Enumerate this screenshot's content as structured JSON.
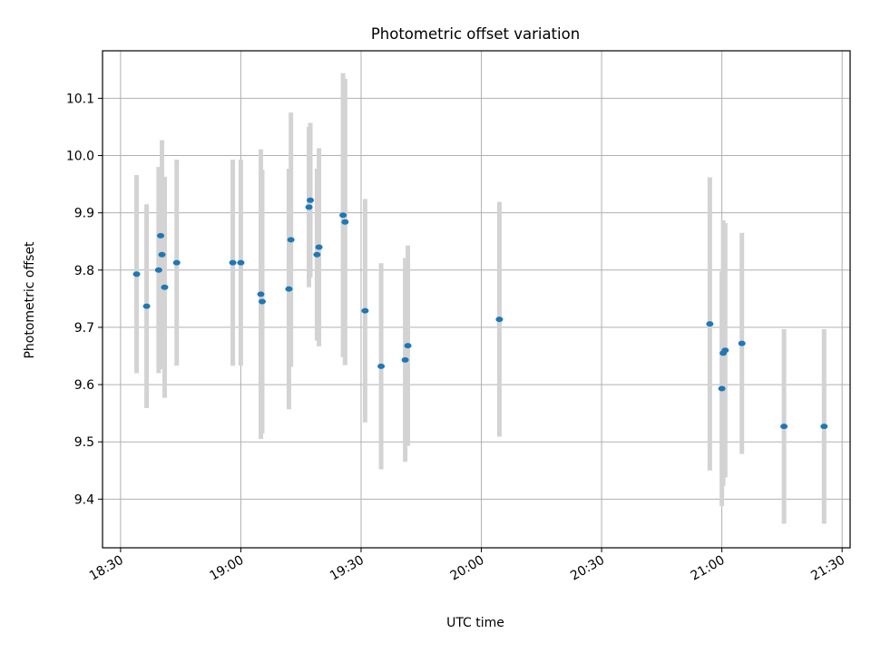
{
  "chart_data": {
    "type": "scatter",
    "title": "Photometric offset variation",
    "xlabel": "UTC time",
    "ylabel": "Photometric offset",
    "x_axis": "time (HH:MM UTC)",
    "xlim": [
      "18:25:30",
      "21:32:00"
    ],
    "ylim": [
      9.315,
      10.183
    ],
    "x_ticks": [
      "18:30",
      "19:00",
      "19:30",
      "20:00",
      "20:30",
      "21:00",
      "21:30"
    ],
    "y_ticks": [
      9.4,
      9.5,
      9.6,
      9.7,
      9.8,
      9.9,
      10.0,
      10.1
    ],
    "y_tick_labels": [
      "9.4",
      "9.5",
      "9.6",
      "9.7",
      "9.8",
      "9.9",
      "10.0",
      "10.1"
    ],
    "grid": true,
    "colors": {
      "point": "#1f77b4",
      "errorbar": "#d3d3d3",
      "grid": "#b0b0b0"
    },
    "series": [
      {
        "points": [
          {
            "x": "18:34:00",
            "y": 9.793,
            "err": 0.173
          },
          {
            "x": "18:36:30",
            "y": 9.737,
            "err": 0.178
          },
          {
            "x": "18:39:30",
            "y": 9.8,
            "err": 0.18
          },
          {
            "x": "18:40:00",
            "y": 9.86,
            "err": 0.12
          },
          {
            "x": "18:40:20",
            "y": 9.827,
            "err": 0.2
          },
          {
            "x": "18:41:00",
            "y": 9.77,
            "err": 0.193
          },
          {
            "x": "18:44:00",
            "y": 9.813,
            "err": 0.18
          },
          {
            "x": "18:58:00",
            "y": 9.813,
            "err": 0.18
          },
          {
            "x": "19:00:00",
            "y": 9.813,
            "err": 0.18
          },
          {
            "x": "19:05:00",
            "y": 9.758,
            "err": 0.253
          },
          {
            "x": "19:05:20",
            "y": 9.745,
            "err": 0.23
          },
          {
            "x": "19:12:00",
            "y": 9.767,
            "err": 0.21
          },
          {
            "x": "19:12:30",
            "y": 9.853,
            "err": 0.222
          },
          {
            "x": "19:17:00",
            "y": 9.91,
            "err": 0.14
          },
          {
            "x": "19:17:20",
            "y": 9.922,
            "err": 0.135
          },
          {
            "x": "19:19:00",
            "y": 9.827,
            "err": 0.15
          },
          {
            "x": "19:19:30",
            "y": 9.84,
            "err": 0.173
          },
          {
            "x": "19:25:30",
            "y": 9.896,
            "err": 0.248
          },
          {
            "x": "19:26:00",
            "y": 9.884,
            "err": 0.25
          },
          {
            "x": "19:31:00",
            "y": 9.729,
            "err": 0.195
          },
          {
            "x": "19:35:00",
            "y": 9.632,
            "err": 0.18
          },
          {
            "x": "19:41:00",
            "y": 9.643,
            "err": 0.178
          },
          {
            "x": "19:41:40",
            "y": 9.668,
            "err": 0.175
          },
          {
            "x": "20:04:30",
            "y": 9.714,
            "err": 0.205
          },
          {
            "x": "20:57:00",
            "y": 9.706,
            "err": 0.256
          },
          {
            "x": "21:00:00",
            "y": 9.593,
            "err": 0.205
          },
          {
            "x": "21:00:20",
            "y": 9.655,
            "err": 0.232
          },
          {
            "x": "21:00:50",
            "y": 9.66,
            "err": 0.222
          },
          {
            "x": "21:05:00",
            "y": 9.672,
            "err": 0.193
          },
          {
            "x": "21:15:30",
            "y": 9.527,
            "err": 0.17
          },
          {
            "x": "21:25:30",
            "y": 9.527,
            "err": 0.17
          }
        ]
      }
    ]
  }
}
